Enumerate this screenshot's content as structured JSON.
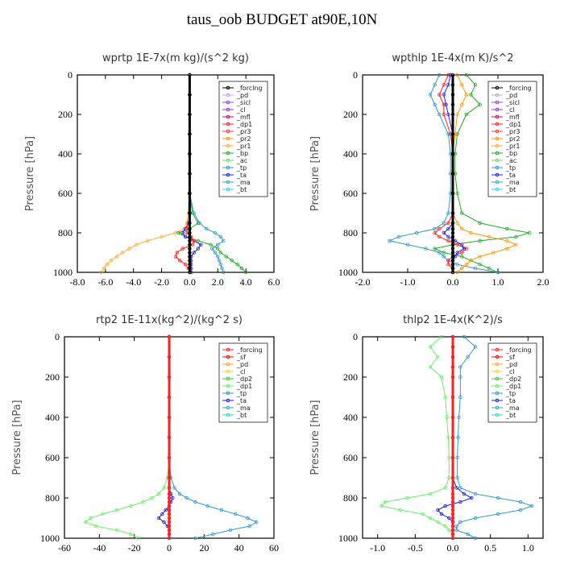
{
  "title": "taus_oob  BUDGET at90E,10N",
  "colors": {
    "forcing": "#000000",
    "pd": "#c8a0e0",
    "sicl": "#8a4fd0",
    "cl": "#9933cc",
    "mfl": "#cc0066",
    "dp1": "#ff2020",
    "pr3": "#ff3344",
    "pr2": "#ff9900",
    "pr1": "#ffaa33",
    "bp": "#22aa22",
    "ac": "#66dd66",
    "tp": "#3399cc",
    "ta": "#2222dd",
    "ma": "#33aacc",
    "bt": "#22dddd",
    "sf": "#ff0000",
    "cl3": "#ffcc33",
    "dp2": "#33cc33",
    "dp1g": "#66ee66"
  },
  "chart_data": [
    {
      "type": "line",
      "title": "wprtp  1E-7x(m kg)/(s^2 kg)",
      "ylabel": "Pressure [hPa]",
      "xlim": [
        -8,
        6
      ],
      "ylim": [
        1000,
        0
      ],
      "xticks": [
        "-8.0",
        "-6.0",
        "-4.0",
        "-2.0",
        "0.0",
        "2.0",
        "4.0",
        "6.0"
      ],
      "yticks": [
        "0",
        "200",
        "400",
        "600",
        "800",
        "1000"
      ],
      "legend": [
        "_forcing",
        "_pd",
        "_sicl",
        "_cl",
        "_mfl",
        "_dp1",
        "_pr3",
        "_pr2",
        "_pr1",
        "_bp",
        "_ac",
        "_tp",
        "_ta",
        "_ma",
        "_bt"
      ],
      "legend_colors": [
        "forcing",
        "pd",
        "sicl",
        "cl",
        "mfl",
        "dp1",
        "pr3",
        "pr2",
        "pr1",
        "bp",
        "ac",
        "tp",
        "ta",
        "ma",
        "bt"
      ],
      "legend_position": "top-right",
      "p": [
        0,
        100,
        200,
        300,
        400,
        500,
        600,
        700,
        750,
        780,
        800,
        820,
        840,
        860,
        880,
        900,
        920,
        940,
        960,
        980,
        1000
      ],
      "series": [
        {
          "key": "pr1",
          "values": [
            0,
            0,
            0,
            0,
            0,
            0,
            -0.05,
            -0.1,
            -0.2,
            -0.4,
            -1.0,
            -2.0,
            -3.0,
            -3.8,
            -4.3,
            -4.8,
            -5.2,
            -5.6,
            -5.9,
            -6.1,
            -6.3
          ]
        },
        {
          "key": "bp",
          "values": [
            0,
            0,
            0,
            0,
            0,
            0,
            0,
            0.2,
            0.6,
            0.0,
            -0.8,
            -0.3,
            0.6,
            1.5,
            2.0,
            2.2,
            2.6,
            3.0,
            3.4,
            3.7,
            4.0
          ]
        },
        {
          "key": "tp",
          "values": [
            0,
            0,
            0,
            0,
            0,
            0,
            0,
            0.3,
            0.7,
            1.2,
            1.8,
            2.2,
            2.4,
            2.0,
            1.6,
            1.8,
            2.0,
            2.1,
            2.2,
            2.3,
            2.4
          ]
        },
        {
          "key": "ta",
          "values": [
            0,
            0,
            0,
            0,
            0,
            0,
            0,
            0,
            -0.1,
            -0.3,
            -0.5,
            -0.3,
            0.3,
            0.8,
            0.6,
            0.3,
            0.1,
            0.1,
            0.1,
            0.1,
            0.1
          ]
        },
        {
          "key": "dp1",
          "values": [
            0,
            0,
            0,
            0,
            0,
            0,
            0,
            0,
            -0.1,
            -0.2,
            -0.2,
            0.1,
            0.3,
            0.2,
            -0.5,
            -0.9,
            -1.0,
            -0.7,
            -0.3,
            -0.1,
            0
          ]
        },
        {
          "key": "forcing",
          "values": [
            0,
            0,
            0,
            0,
            0,
            0,
            0,
            0,
            0,
            0,
            0,
            0,
            0,
            0,
            0,
            0,
            0,
            0,
            0,
            0,
            0
          ]
        }
      ]
    },
    {
      "type": "line",
      "title": "wpthlp  1E-4x(m K)/s^2",
      "ylabel": "Pressure [hPa]",
      "xlim": [
        -2,
        2
      ],
      "ylim": [
        1000,
        0
      ],
      "xticks": [
        "-2.0",
        "-1.0",
        "0.0",
        "1.0",
        "2.0"
      ],
      "yticks": [
        "0",
        "200",
        "400",
        "600",
        "800",
        "1000"
      ],
      "legend": [
        "_forcing",
        "_pd",
        "_sicl",
        "_cl",
        "_mfl",
        "_dp1",
        "_pr3",
        "_pr2",
        "_pr1",
        "_bp",
        "_ac",
        "_tp",
        "_ta",
        "_ma",
        "_bt"
      ],
      "legend_colors": [
        "forcing",
        "pd",
        "sicl",
        "cl",
        "mfl",
        "dp1",
        "pr3",
        "pr2",
        "pr1",
        "bp",
        "ac",
        "tp",
        "ta",
        "ma",
        "bt"
      ],
      "legend_position": "top-right",
      "p": [
        0,
        50,
        100,
        150,
        200,
        300,
        400,
        500,
        600,
        700,
        750,
        780,
        800,
        820,
        840,
        860,
        880,
        900,
        920,
        940,
        960,
        980,
        1000
      ],
      "series": [
        {
          "key": "bp",
          "values": [
            0.3,
            0.5,
            0.4,
            0.6,
            0.3,
            0.1,
            0.05,
            0.05,
            0.1,
            0.2,
            0.6,
            1.2,
            1.7,
            1.4,
            0.6,
            0.0,
            -0.4,
            -0.2,
            0.2,
            0.4,
            0.6,
            0.8,
            1.0
          ]
        },
        {
          "key": "tp",
          "values": [
            -0.3,
            -0.4,
            -0.5,
            -0.4,
            -0.3,
            -0.1,
            -0.05,
            -0.05,
            -0.05,
            -0.1,
            -0.2,
            -0.4,
            -0.8,
            -1.2,
            -1.4,
            -1.0,
            -0.6,
            -0.3,
            -0.2,
            -0.1,
            0.1,
            0.5,
            1.0
          ]
        },
        {
          "key": "pr2",
          "values": [
            0.1,
            0.2,
            0.3,
            0.2,
            0.1,
            0.05,
            0,
            0,
            0,
            0,
            0.1,
            0.2,
            0.4,
            0.8,
            1.2,
            1.4,
            1.2,
            0.9,
            0.6,
            0.4,
            0.3,
            0.2,
            0.1
          ]
        },
        {
          "key": "dp1",
          "values": [
            -0.1,
            -0.2,
            -0.3,
            -0.2,
            -0.2,
            -0.05,
            0,
            0,
            0,
            0,
            -0.1,
            -0.3,
            -0.4,
            -0.3,
            -0.1,
            0.1,
            0.3,
            0.2,
            0.0,
            -0.1,
            -0.1,
            0,
            0
          ]
        },
        {
          "key": "ta",
          "values": [
            -0.05,
            -0.1,
            -0.2,
            -0.15,
            -0.1,
            0,
            0,
            0,
            0,
            0,
            0,
            -0.1,
            -0.2,
            -0.1,
            0.05,
            0.2,
            0.25,
            0.1,
            0.05,
            0,
            0,
            0,
            0
          ]
        },
        {
          "key": "forcing",
          "values": [
            0,
            0,
            0,
            0,
            0,
            0,
            0,
            0,
            0,
            0,
            0,
            0,
            0,
            0,
            0,
            0,
            0,
            0,
            0,
            0,
            0,
            0,
            0
          ]
        }
      ]
    },
    {
      "type": "line",
      "title": "rtp2  1E-11x(kg^2)/(kg^2 s)",
      "ylabel": "Pressure [hPa]",
      "xlim": [
        -60,
        60
      ],
      "ylim": [
        1000,
        0
      ],
      "xticks": [
        "-60",
        "-40",
        "-20",
        "0",
        "20",
        "40",
        "60"
      ],
      "yticks": [
        "0",
        "200",
        "400",
        "600",
        "800",
        "1000"
      ],
      "legend": [
        "_forcing",
        "_sf",
        "_pd",
        "_cl",
        "_dp2",
        "_dp1",
        "_tp",
        "_ta",
        "_ma",
        "_bt"
      ],
      "legend_colors": [
        "dp1",
        "sf",
        "pr1",
        "cl3",
        "dp2",
        "dp1g",
        "tp",
        "ta",
        "ma",
        "bt"
      ],
      "legend_position": "top-right",
      "p": [
        0,
        100,
        200,
        300,
        400,
        500,
        600,
        700,
        750,
        780,
        800,
        820,
        840,
        860,
        880,
        900,
        920,
        940,
        960,
        980,
        1000
      ],
      "series": [
        {
          "key": "dp1g",
          "values": [
            0,
            0,
            0,
            0,
            0,
            0,
            0,
            -1,
            -3,
            -6,
            -10,
            -15,
            -22,
            -30,
            -38,
            -45,
            -48,
            -42,
            -30,
            -22,
            -18
          ]
        },
        {
          "key": "tp",
          "values": [
            0,
            0,
            0,
            0,
            0,
            0,
            0,
            1,
            3,
            6,
            10,
            15,
            22,
            30,
            38,
            45,
            50,
            46,
            35,
            25,
            15
          ]
        },
        {
          "key": "ta",
          "values": [
            0,
            0,
            0,
            0,
            0,
            0,
            0,
            0,
            0,
            1,
            2,
            1,
            0,
            -2,
            -4,
            -6,
            -3,
            -1,
            0,
            0,
            0
          ]
        },
        {
          "key": "dp1",
          "values": [
            0,
            0,
            0,
            0,
            0,
            0,
            0,
            0,
            0,
            0,
            0,
            0,
            0,
            0,
            0,
            0,
            0,
            0,
            0,
            0,
            0
          ]
        }
      ]
    },
    {
      "type": "line",
      "title": "thlp2  1E-4x(K^2)/s",
      "ylabel": "Pressure [hPa]",
      "xlim": [
        -1.2,
        1.2
      ],
      "ylim": [
        1000,
        0
      ],
      "xticks": [
        "-1.0",
        "-0.5",
        "0.0",
        "0.5",
        "1.0"
      ],
      "yticks": [
        "0",
        "200",
        "400",
        "600",
        "800",
        "1000"
      ],
      "legend": [
        "_forcing",
        "_sf",
        "_pd",
        "_cl",
        "_dp2",
        "_dp1",
        "_tp",
        "_ta",
        "_ma",
        "_bt"
      ],
      "legend_colors": [
        "dp1",
        "sf",
        "pr1",
        "cl3",
        "dp2",
        "dp1g",
        "tp",
        "ta",
        "ma",
        "bt"
      ],
      "legend_position": "top-right",
      "p": [
        0,
        50,
        100,
        150,
        200,
        300,
        400,
        500,
        600,
        700,
        750,
        780,
        800,
        820,
        840,
        860,
        880,
        900,
        920,
        940,
        960,
        980,
        1000
      ],
      "series": [
        {
          "key": "dp1g",
          "values": [
            -0.15,
            -0.3,
            -0.2,
            -0.3,
            -0.15,
            -0.1,
            -0.08,
            -0.06,
            -0.05,
            -0.05,
            -0.1,
            -0.3,
            -0.6,
            -0.9,
            -0.95,
            -0.7,
            -0.4,
            -0.3,
            -0.2,
            -0.1,
            -0.05,
            0,
            0
          ]
        },
        {
          "key": "tp",
          "values": [
            0.15,
            0.3,
            0.2,
            0.1,
            0.1,
            0.1,
            0.08,
            0.07,
            0.06,
            0.06,
            0.1,
            0.3,
            0.6,
            0.9,
            1.05,
            0.9,
            0.6,
            0.3,
            0.1,
            0.05,
            0.05,
            0.2,
            0.3
          ]
        },
        {
          "key": "ta",
          "values": [
            0,
            0,
            0,
            0,
            0,
            0,
            0,
            0,
            0,
            0,
            0.05,
            0.15,
            0.25,
            0.1,
            -0.1,
            -0.2,
            -0.15,
            -0.05,
            0,
            0,
            0,
            0,
            0
          ]
        },
        {
          "key": "dp1",
          "values": [
            0,
            0,
            0,
            0,
            0,
            0,
            0,
            0,
            0,
            0,
            0,
            0,
            0,
            0,
            0,
            0,
            0,
            0,
            0,
            0,
            0,
            0,
            0
          ]
        }
      ]
    }
  ]
}
